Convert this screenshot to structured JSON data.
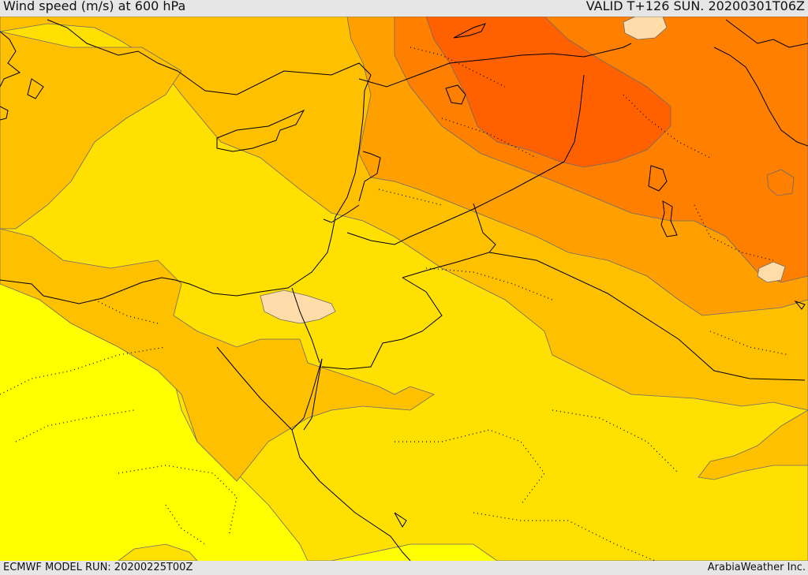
{
  "header": {
    "title": "Wind speed (m/s) at 600 hPa",
    "valid": "VALID T+126 SUN. 20200301T06Z"
  },
  "footer": {
    "model_run": "ECMWF MODEL RUN: 20200225T00Z",
    "credit": "ArabiaWeather Inc."
  },
  "map": {
    "fill_colors": [
      "#ffff00",
      "#ffe000",
      "#ffc000",
      "#ff9f00",
      "#ff7f00",
      "#ff6000",
      "#ffdca8"
    ],
    "line_colors": {
      "coast_border": "#000000",
      "contour": "#6b6b6b",
      "internal_border": "#000000"
    }
  }
}
